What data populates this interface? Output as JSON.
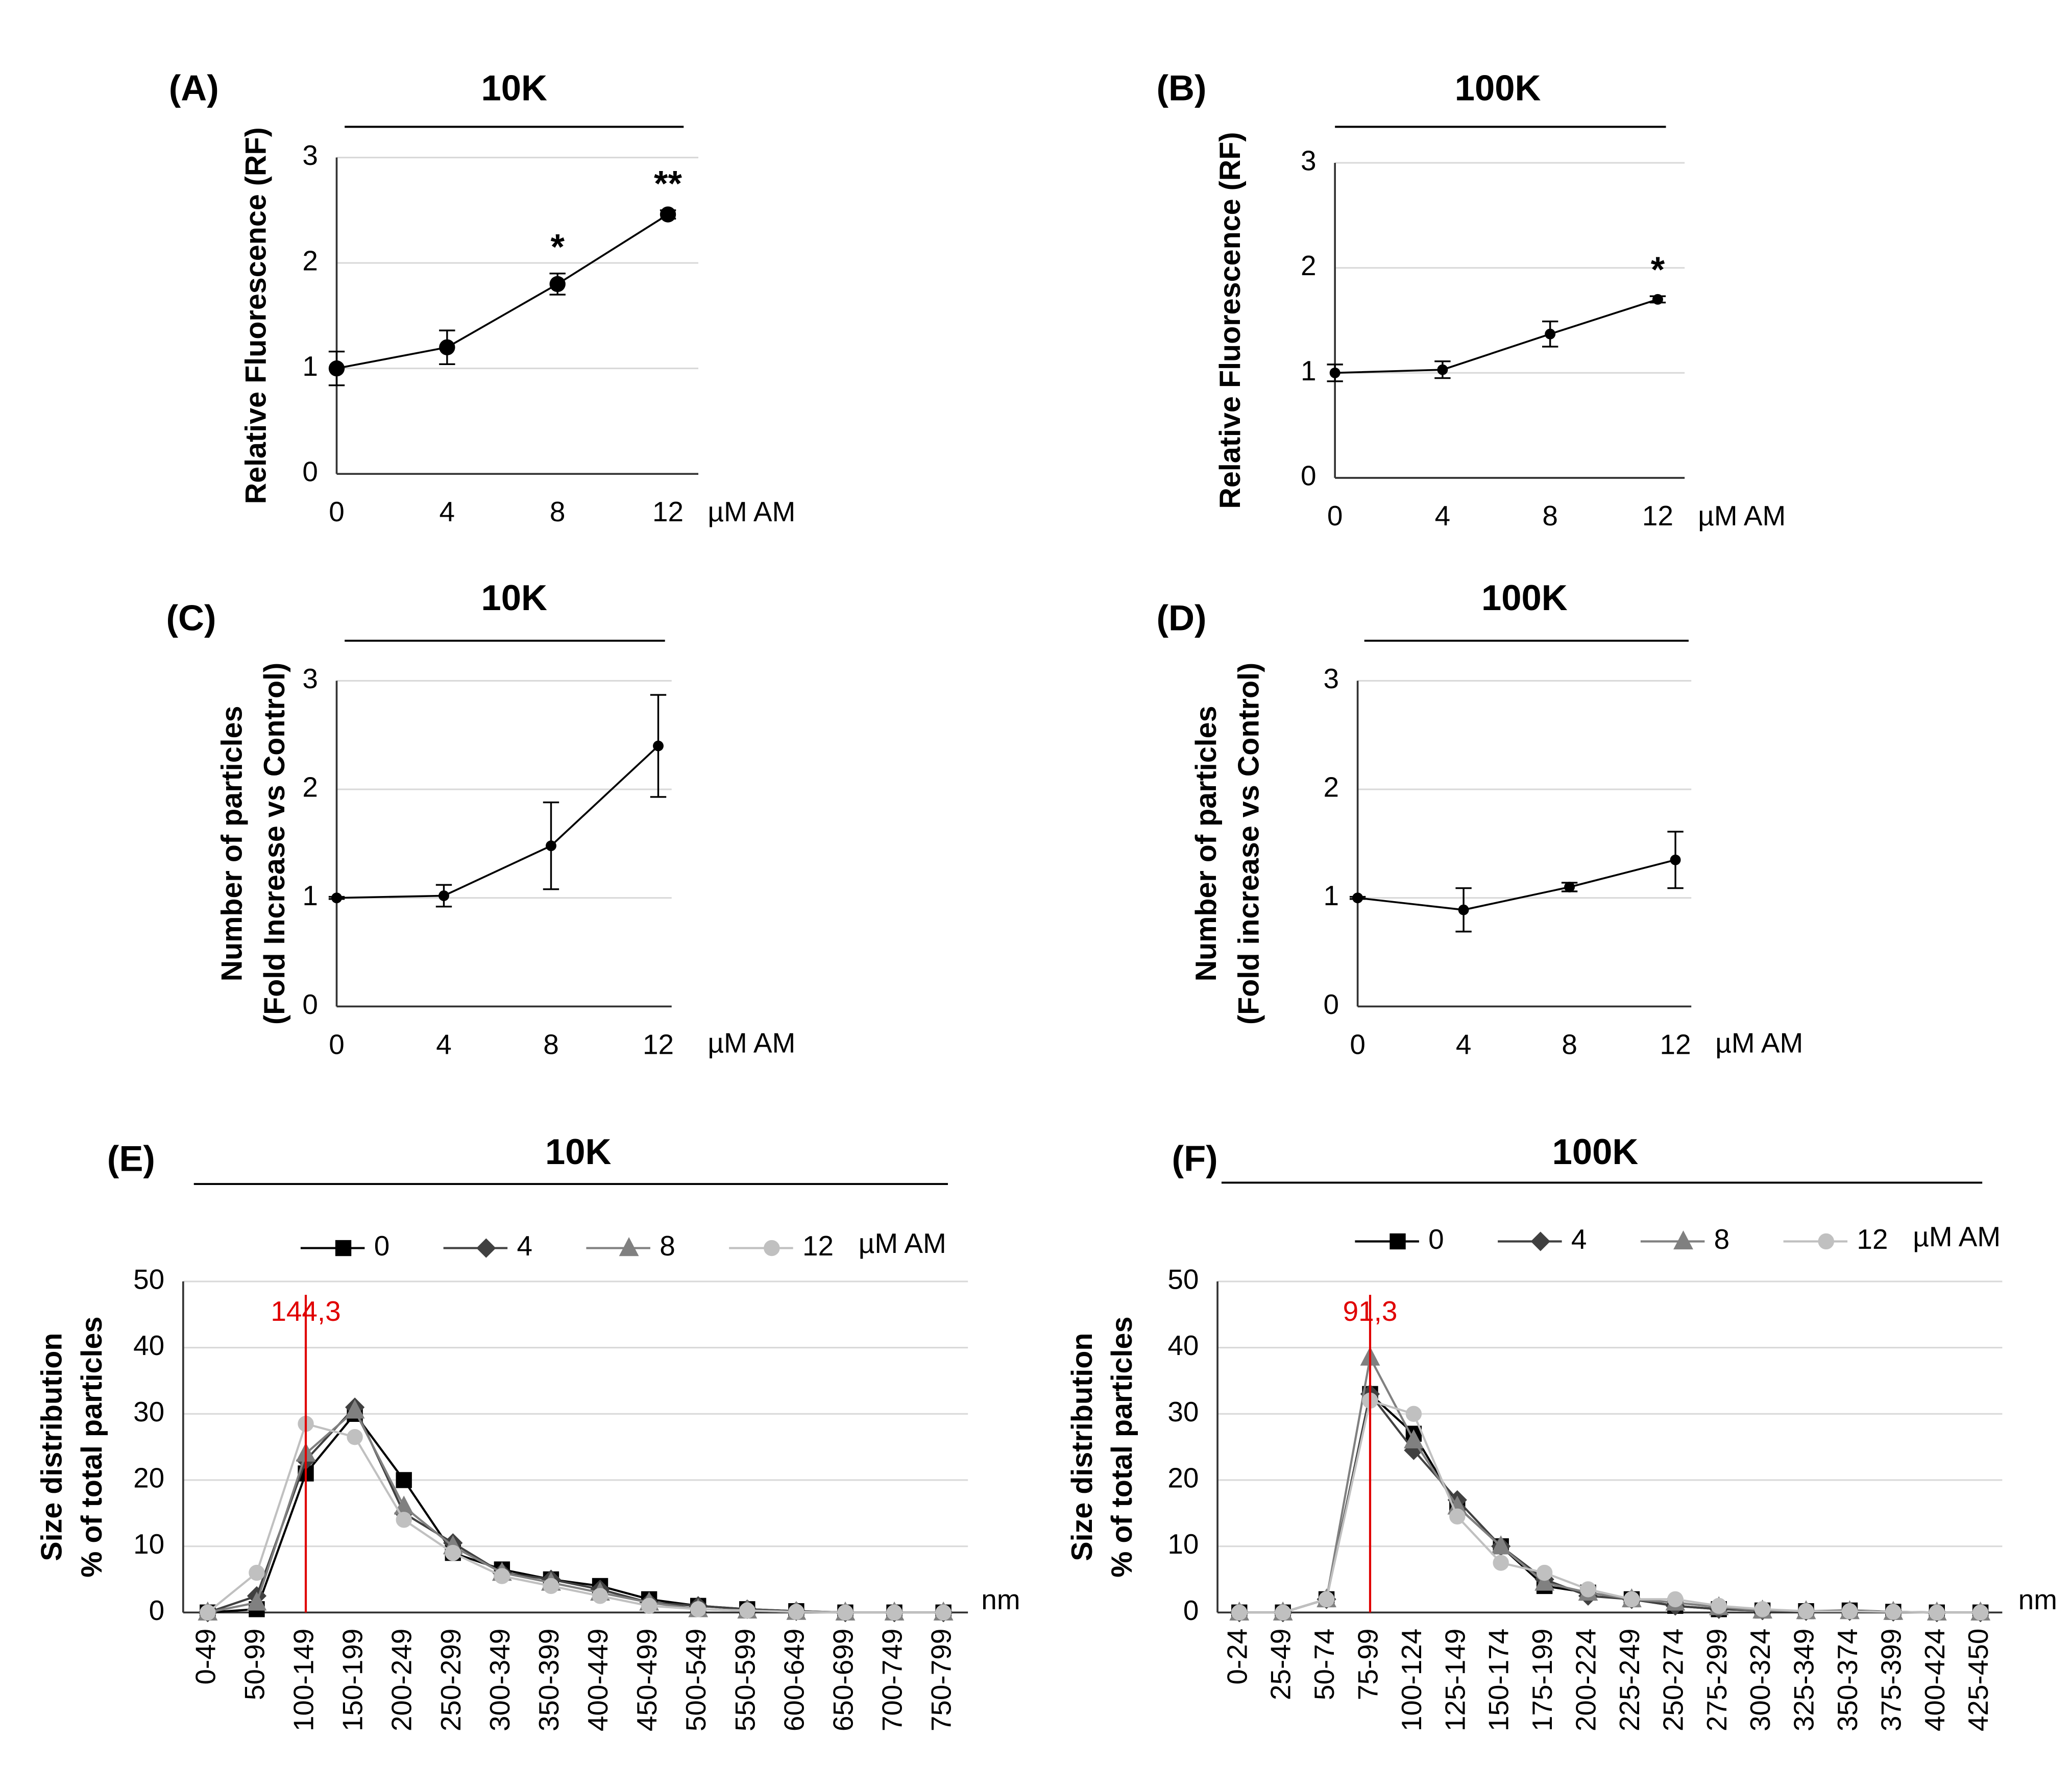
{
  "chart_data": [
    {
      "type": "line",
      "panel": "(A)",
      "title": "10K",
      "ylabel": [
        "Relative  Fluorescence  (RF)"
      ],
      "xlabel": "µM AM",
      "x": [
        0,
        4,
        8,
        12
      ],
      "values": [
        1,
        1.2,
        1.8,
        2.46
      ],
      "errors": [
        0.16,
        0.16,
        0.1,
        0.04
      ],
      "significance": [
        null,
        null,
        "*",
        "**"
      ],
      "color": "#000000",
      "xlim": [
        0,
        13.1
      ],
      "xticks": [
        0,
        4,
        8,
        12
      ],
      "ylim": [
        0,
        3
      ],
      "yticks": [
        0,
        1,
        2,
        3
      ],
      "grid": true
    },
    {
      "type": "line",
      "panel": "(B)",
      "title": "100K",
      "ylabel": [
        "Relative  Fluorescence  (RF)"
      ],
      "xlabel": "µM AM",
      "x": [
        0,
        4,
        8,
        12
      ],
      "values": [
        1,
        1.03,
        1.37,
        1.7
      ],
      "errors": [
        0.08,
        0.08,
        0.12,
        0.03
      ],
      "significance": [
        null,
        null,
        null,
        "*"
      ],
      "color": "#000000",
      "xlim": [
        0,
        13
      ],
      "xticks": [
        0,
        4,
        8,
        12
      ],
      "ylim": [
        0,
        3
      ],
      "yticks": [
        0,
        1,
        2,
        3
      ],
      "grid": true
    },
    {
      "type": "line",
      "panel": "(C)",
      "title": "10K",
      "ylabel": [
        "Number of particles",
        "(Fold Increase vs Control)"
      ],
      "xlabel": "µM AM",
      "x": [
        0,
        4,
        8,
        12
      ],
      "values": [
        1,
        1.02,
        1.48,
        2.4
      ],
      "errors": [
        0.01,
        0.1,
        0.4,
        0.47
      ],
      "color": "#000000",
      "xlim": [
        0,
        12.5
      ],
      "xticks": [
        0,
        4,
        8,
        12
      ],
      "ylim": [
        0,
        3
      ],
      "yticks": [
        0,
        1,
        2,
        3
      ],
      "grid": true
    },
    {
      "type": "line",
      "panel": "(D)",
      "title": "100K",
      "ylabel": [
        "Number of particles",
        "(Fold increase vs Control)"
      ],
      "xlabel": "µM AM",
      "x": [
        0,
        4,
        8,
        12
      ],
      "values": [
        1,
        0.89,
        1.1,
        1.35
      ],
      "errors": [
        0.01,
        0.2,
        0.04,
        0.26
      ],
      "color": "#000000",
      "xlim": [
        0,
        12.6
      ],
      "xticks": [
        0,
        4,
        8,
        12
      ],
      "ylim": [
        0,
        3
      ],
      "yticks": [
        0,
        1,
        2,
        3
      ],
      "grid": true
    },
    {
      "type": "multiline",
      "panel": "(E)",
      "title": "10K",
      "ylabel": [
        "Size distribution",
        "% of total particles"
      ],
      "xlabel": "nm",
      "legend_unit": "µM AM",
      "categories": [
        "0-49",
        "50-99",
        "100-149",
        "150-199",
        "200-249",
        "250-299",
        "300-349",
        "350-399",
        "400-449",
        "450-499",
        "500-549",
        "550-599",
        "600-649",
        "650-699",
        "700-749",
        "750-799"
      ],
      "series": [
        {
          "name": "0",
          "color": "#000000",
          "marker": "square",
          "values": [
            0,
            0.5,
            21,
            30,
            20,
            9,
            6.5,
            5,
            4,
            2,
            1,
            0.5,
            0.2,
            0,
            0,
            0
          ]
        },
        {
          "name": "4",
          "color": "#404040",
          "marker": "diamond",
          "values": [
            0,
            2.5,
            23,
            31,
            15,
            10.5,
            6,
            5,
            3.5,
            1.5,
            1,
            0.5,
            0.2,
            0,
            0,
            0
          ]
        },
        {
          "name": "8",
          "color": "#808080",
          "marker": "triangle",
          "values": [
            0,
            1.5,
            24,
            30.5,
            16,
            10,
            6,
            4.5,
            3,
            1.5,
            0.5,
            0.3,
            0.1,
            0,
            0,
            0
          ]
        },
        {
          "name": "12",
          "color": "#c0c0c0",
          "marker": "circle",
          "values": [
            0,
            6,
            28.5,
            26.5,
            14,
            9,
            5.5,
            4,
            2.5,
            1,
            0.5,
            0.3,
            0.1,
            0,
            0,
            0
          ]
        }
      ],
      "marker_line": {
        "value": 144.3,
        "label": "144,3",
        "color": "#e00000"
      },
      "ylim": [
        0,
        50
      ],
      "yticks": [
        0,
        10,
        20,
        30,
        40,
        50
      ],
      "grid": true
    },
    {
      "type": "multiline",
      "panel": "(F)",
      "title": "100K",
      "ylabel": [
        "Size distribution",
        "% of total particles"
      ],
      "xlabel": "nm",
      "legend_unit": "µM AM",
      "categories": [
        "0-24",
        "25-49",
        "50-74",
        "75-99",
        "100-124",
        "125-149",
        "150-174",
        "175-199",
        "200-224",
        "225-249",
        "250-274",
        "275-299",
        "300-324",
        "325-349",
        "350-374",
        "375-399",
        "400-424",
        "425-450"
      ],
      "series": [
        {
          "name": "0",
          "color": "#000000",
          "marker": "square",
          "values": [
            0,
            0,
            2,
            33,
            27,
            16,
            10,
            4,
            3,
            2,
            1,
            0.5,
            0.3,
            0.2,
            0.3,
            0.1,
            0,
            0
          ]
        },
        {
          "name": "4",
          "color": "#404040",
          "marker": "diamond",
          "values": [
            0,
            0,
            2,
            33,
            24.5,
            17,
            10,
            5,
            2.5,
            2,
            1,
            0.5,
            0.3,
            0.2,
            0.2,
            0.1,
            0,
            0
          ]
        },
        {
          "name": "8",
          "color": "#808080",
          "marker": "triangle",
          "values": [
            0,
            0,
            2,
            38.5,
            26,
            16,
            10,
            4.5,
            3,
            2,
            1.5,
            0.8,
            0.3,
            0.2,
            0.2,
            0.1,
            0,
            0
          ]
        },
        {
          "name": "12",
          "color": "#c0c0c0",
          "marker": "circle",
          "values": [
            0,
            0,
            2,
            32,
            30,
            14.5,
            7.5,
            6,
            3.5,
            2,
            2,
            1,
            0.5,
            0.2,
            0.2,
            0.1,
            0,
            0
          ]
        }
      ],
      "marker_line": {
        "value": 91.3,
        "label": "91,3",
        "color": "#e00000"
      },
      "ylim": [
        0,
        50
      ],
      "yticks": [
        0,
        10,
        20,
        30,
        40,
        50
      ],
      "grid": true
    }
  ]
}
